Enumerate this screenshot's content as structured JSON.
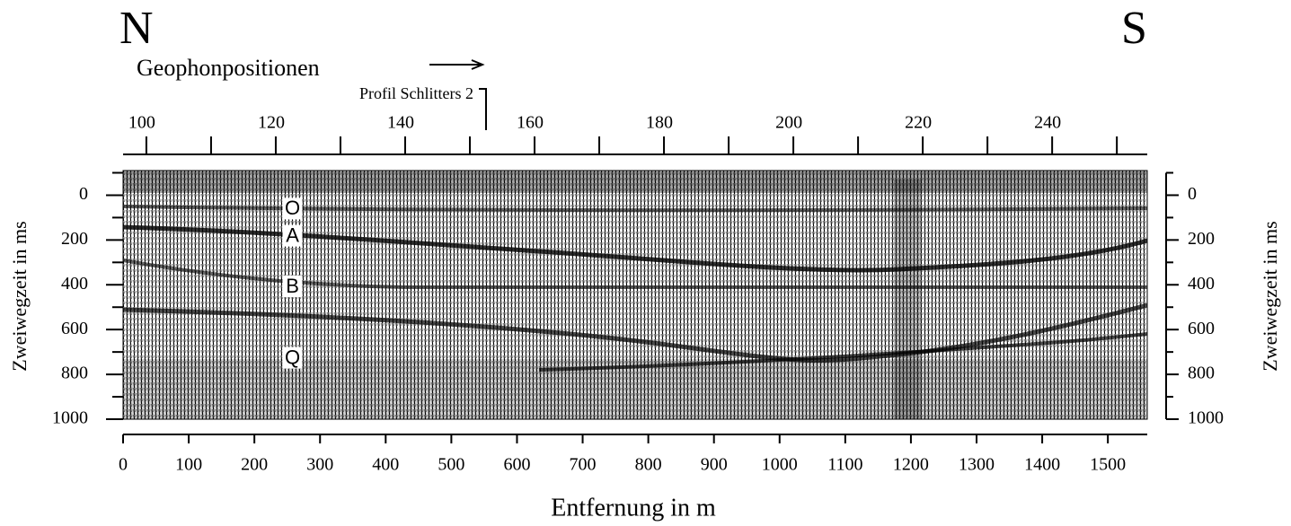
{
  "chart_data": {
    "type": "seismic",
    "north": "N",
    "south": "S",
    "x2label": "Geophonpositionen",
    "profile_label": "Profil Schlitters 2",
    "profile_start": 152.5,
    "x2lim": [
      96.4,
      254.7
    ],
    "x2ticks": [
      100,
      120,
      140,
      160,
      180,
      200,
      220,
      240
    ],
    "x2minor": [
      110,
      130,
      150,
      170,
      190,
      210,
      230,
      250
    ],
    "xlabel": "Entfernung in m",
    "xlim": [
      0,
      1560
    ],
    "xticks": [
      0,
      100,
      200,
      300,
      400,
      500,
      600,
      700,
      800,
      900,
      1000,
      1100,
      1200,
      1300,
      1400,
      1500
    ],
    "ylabel": "Zweiwegzeit in ms",
    "ylim": [
      1000,
      -110
    ],
    "yticks": [
      0,
      200,
      400,
      600,
      800,
      1000
    ],
    "yminor": [
      -100,
      100,
      300,
      500,
      700,
      900
    ],
    "reflectors": [
      {
        "label": "O",
        "x": 258,
        "y": 60
      },
      {
        "label": "A",
        "x": 258,
        "y": 181
      },
      {
        "label": "B",
        "x": 258,
        "y": 407
      },
      {
        "label": "Q",
        "x": 258,
        "y": 726
      }
    ]
  }
}
